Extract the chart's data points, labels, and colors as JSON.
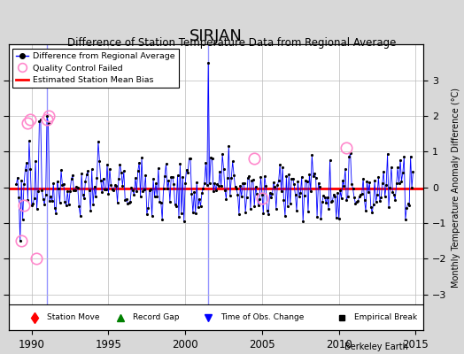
{
  "title": "SIRJAN",
  "subtitle": "Difference of Station Temperature Data from Regional Average",
  "ylabel": "Monthly Temperature Anomaly Difference (°C)",
  "xlim": [
    1988.5,
    2015.5
  ],
  "ylim": [
    -4,
    4
  ],
  "yticks": [
    -3,
    -2,
    -1,
    0,
    1,
    2,
    3
  ],
  "xticks": [
    1990,
    1995,
    2000,
    2005,
    2010,
    2015
  ],
  "background_color": "#d8d8d8",
  "plot_bg_color": "#ffffff",
  "station_bias": -0.02,
  "title_fontsize": 13,
  "subtitle_fontsize": 8.5,
  "watermark": "Berkeley Earth",
  "blue_vlines": [
    1991.0,
    2001.5
  ],
  "qc_years": [
    1989.3,
    1989.5,
    1989.7,
    1989.9,
    1990.3,
    1991.0,
    1991.1,
    2004.5,
    2005.0,
    2010.5
  ],
  "qc_vals": [
    -1.5,
    -0.5,
    1.8,
    1.9,
    -2.0,
    1.9,
    2.0,
    0.8,
    -0.3,
    1.1
  ]
}
